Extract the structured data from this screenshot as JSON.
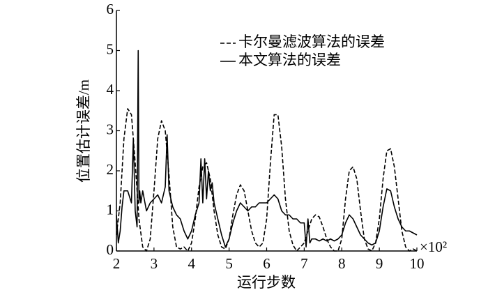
{
  "chart_data": {
    "type": "line",
    "x_label": "运行步数",
    "y_label": "位置估计误差/m",
    "x_multiplier": "×10²",
    "xlim": [
      2,
      10
    ],
    "xticks": [
      2,
      3,
      4,
      5,
      6,
      7,
      8,
      9,
      10
    ],
    "ylim": [
      0,
      6
    ],
    "yticks": [
      0,
      1,
      2,
      3,
      4,
      5,
      6
    ],
    "grid": false,
    "legend": "upper right",
    "series": [
      {
        "name": "卡尔曼滤波算法的误差",
        "color": "#000000",
        "style": "dashed",
        "x": [
          2.0,
          2.1,
          2.2,
          2.3,
          2.4,
          2.5,
          2.6,
          2.7,
          2.8,
          2.9,
          3.0,
          3.1,
          3.2,
          3.3,
          3.4,
          3.5,
          3.6,
          3.7,
          3.8,
          3.9,
          4.0,
          4.1,
          4.2,
          4.3,
          4.4,
          4.5,
          4.6,
          4.7,
          4.8,
          4.9,
          5.0,
          5.1,
          5.2,
          5.3,
          5.4,
          5.5,
          5.6,
          5.7,
          5.8,
          5.9,
          6.0,
          6.1,
          6.2,
          6.3,
          6.4,
          6.5,
          6.6,
          6.7,
          6.8,
          6.9,
          7.0,
          7.1,
          7.2,
          7.3,
          7.4,
          7.5,
          7.6,
          7.7,
          7.8,
          7.9,
          8.0,
          8.1,
          8.2,
          8.3,
          8.4,
          8.5,
          8.6,
          8.7,
          8.8,
          8.9,
          9.0,
          9.1,
          9.2,
          9.3,
          9.4,
          9.5,
          9.6,
          9.7,
          9.8,
          9.9,
          10.0
        ],
        "values": [
          0.4,
          1.2,
          2.8,
          3.55,
          3.4,
          2.2,
          0.8,
          0.1,
          0.0,
          0.3,
          1.5,
          2.8,
          3.25,
          3.0,
          1.9,
          0.6,
          0.1,
          0.05,
          0.1,
          0.0,
          0.2,
          0.8,
          1.6,
          2.1,
          2.2,
          1.8,
          1.0,
          0.4,
          0.1,
          0.05,
          0.3,
          0.9,
          1.4,
          1.65,
          1.5,
          1.0,
          0.5,
          0.2,
          0.1,
          0.2,
          0.8,
          2.2,
          3.4,
          3.4,
          2.6,
          1.3,
          0.5,
          0.15,
          0.0,
          0.1,
          0.2,
          0.5,
          0.8,
          0.9,
          0.85,
          0.6,
          0.3,
          0.1,
          0.0,
          0.0,
          0.3,
          1.3,
          2.0,
          2.1,
          1.8,
          1.0,
          0.3,
          0.05,
          0.0,
          0.2,
          0.8,
          1.8,
          2.5,
          2.55,
          2.1,
          1.3,
          0.5,
          0.1,
          0.0,
          0.05,
          0.0
        ]
      },
      {
        "name": "本文算法的误差",
        "color": "#000000",
        "style": "solid",
        "x": [
          2.0,
          2.05,
          2.1,
          2.15,
          2.2,
          2.3,
          2.4,
          2.45,
          2.5,
          2.55,
          2.58,
          2.6,
          2.62,
          2.65,
          2.7,
          2.8,
          2.9,
          3.0,
          3.1,
          3.2,
          3.3,
          3.35,
          3.4,
          3.5,
          3.6,
          3.7,
          3.8,
          3.9,
          4.0,
          4.1,
          4.2,
          4.25,
          4.3,
          4.35,
          4.4,
          4.45,
          4.5,
          4.55,
          4.6,
          4.7,
          4.8,
          4.9,
          5.0,
          5.1,
          5.2,
          5.3,
          5.4,
          5.5,
          5.6,
          5.7,
          5.8,
          5.9,
          6.0,
          6.1,
          6.2,
          6.3,
          6.4,
          6.5,
          6.6,
          6.7,
          6.8,
          6.9,
          7.0,
          7.05,
          7.1,
          7.15,
          7.2,
          7.3,
          7.4,
          7.5,
          7.6,
          7.7,
          7.8,
          7.9,
          8.0,
          8.1,
          8.2,
          8.3,
          8.4,
          8.5,
          8.6,
          8.7,
          8.8,
          8.9,
          9.0,
          9.1,
          9.2,
          9.3,
          9.4,
          9.5,
          9.6,
          9.7,
          9.8,
          9.9,
          10.0
        ],
        "values": [
          0.9,
          0.2,
          0.5,
          1.1,
          1.5,
          1.5,
          1.2,
          2.8,
          1.0,
          0.6,
          5.0,
          1.2,
          1.5,
          1.2,
          1.5,
          1.0,
          1.2,
          1.3,
          1.4,
          1.2,
          1.6,
          2.9,
          1.5,
          1.1,
          0.9,
          0.8,
          0.5,
          0.3,
          0.5,
          0.9,
          1.2,
          2.3,
          1.2,
          2.3,
          1.3,
          2.0,
          1.5,
          1.7,
          1.2,
          0.8,
          0.4,
          0.1,
          0.3,
          0.7,
          1.0,
          1.2,
          1.1,
          1.0,
          1.1,
          1.1,
          1.2,
          1.2,
          1.2,
          1.3,
          1.4,
          1.3,
          1.0,
          0.9,
          0.9,
          0.8,
          0.8,
          0.7,
          0.7,
          0.1,
          0.8,
          0.2,
          0.3,
          0.3,
          0.25,
          0.3,
          0.25,
          0.3,
          0.25,
          0.3,
          0.4,
          0.7,
          0.9,
          0.8,
          0.6,
          0.4,
          0.3,
          0.2,
          0.15,
          0.2,
          0.5,
          1.1,
          1.55,
          1.5,
          1.1,
          0.8,
          0.6,
          0.5,
          0.5,
          0.45,
          0.4
        ]
      }
    ]
  }
}
